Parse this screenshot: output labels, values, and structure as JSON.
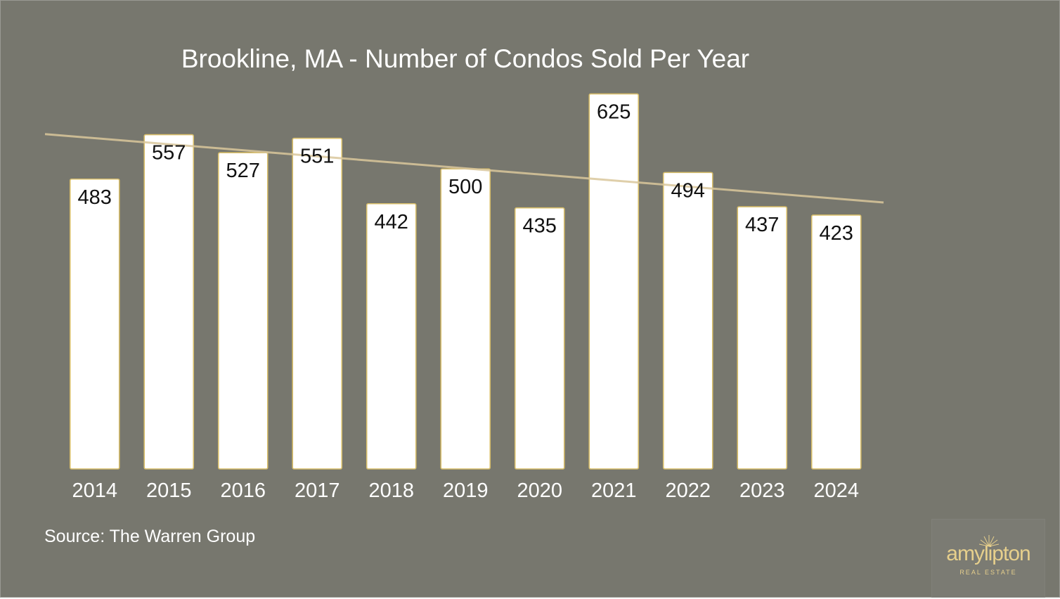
{
  "chart_data": {
    "type": "bar",
    "title": "Brookline, MA - Number of Condos Sold Per Year",
    "categories": [
      "2014",
      "2015",
      "2016",
      "2017",
      "2018",
      "2019",
      "2020",
      "2021",
      "2022",
      "2023",
      "2024"
    ],
    "series": [
      {
        "values": [
          483,
          557,
          527,
          551,
          442,
          500,
          435,
          625,
          494,
          437,
          423
        ]
      }
    ],
    "data_labels": [
      "483",
      "557",
      "527",
      "551",
      "442",
      "500",
      "435",
      "625",
      "494",
      "437",
      "423"
    ],
    "trendline": {
      "type": "linear",
      "start_value": 558,
      "end_value": 444
    },
    "ylim": [
      0,
      628
    ],
    "grid": false,
    "y_axis_visible": false,
    "xlabel": "",
    "ylabel": ""
  },
  "source": "Source: The Warren Group",
  "logo": {
    "wordmark": "amylipton",
    "tagline": "REAL ESTATE"
  },
  "colors": {
    "background": "#77776e",
    "bar_fill": "#ffffff",
    "bar_outline": "#d8be6a",
    "trendline": "#d9c79b",
    "text": "#ffffff",
    "brand": "#e6cf8c"
  }
}
